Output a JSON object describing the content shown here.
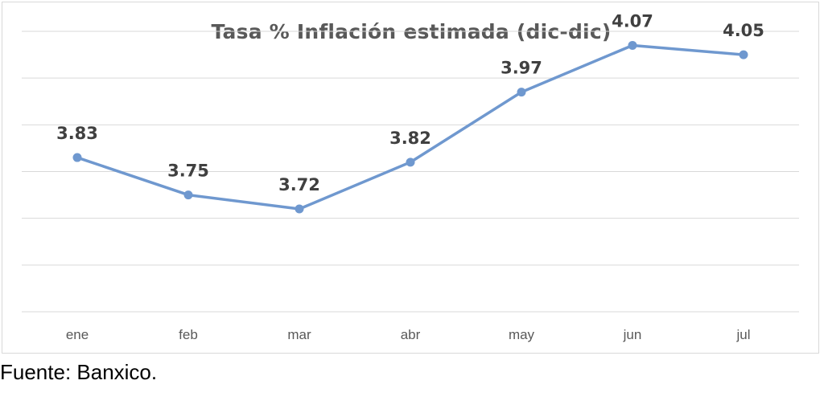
{
  "chart_data": {
    "type": "line",
    "title": "Tasa % Inflación estimada (dic-dic)",
    "xlabel": "",
    "ylabel": "",
    "categories": [
      "ene",
      "feb",
      "mar",
      "abr",
      "may",
      "jun",
      "jul"
    ],
    "series": [
      {
        "values": [
          3.83,
          3.75,
          3.72,
          3.82,
          3.97,
          4.07,
          4.05
        ],
        "labels": [
          "3.83",
          "3.75",
          "3.72",
          "3.82",
          "3.97",
          "4.07",
          "4.05"
        ]
      }
    ],
    "ylim": [
      3.5,
      4.1
    ],
    "gridlines": [
      3.5,
      3.6,
      3.7,
      3.8,
      3.9,
      4.0,
      4.1
    ],
    "grid": true,
    "y_tick_labels_shown": false,
    "legend": "none",
    "colors": {
      "line": "#6f98cf",
      "marker": "#6f98cf",
      "data_label": "#404040",
      "tick_label": "#595959",
      "grid": "#d9d9d9",
      "title": "#595959"
    }
  },
  "source_note": "Fuente: Banxico."
}
